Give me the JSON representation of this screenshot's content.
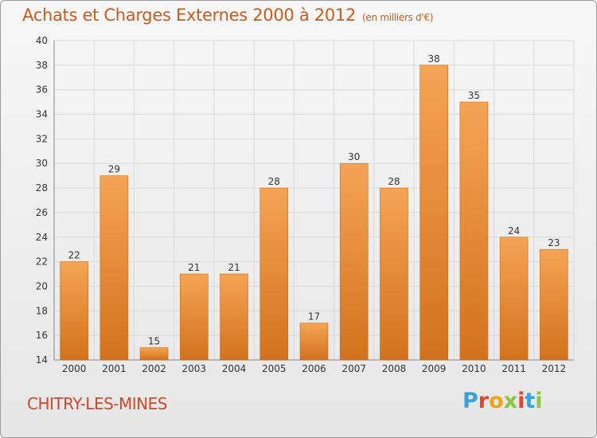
{
  "title": "Achats et Charges Externes 2000 à 2012",
  "subtitle": "(en milliers d'€)",
  "place": "CHITRY-LES-MINES",
  "logo": {
    "letters": [
      "P",
      "r",
      "o",
      "x",
      "i",
      "t",
      "i"
    ],
    "colors": [
      "#3aa0d8",
      "#e2462e",
      "#f0a21b",
      "#8cc63f",
      "#e2462e",
      "#3aa0d8",
      "#8cc63f"
    ]
  },
  "colors": {
    "bar_light": "#f4a455",
    "bar_dark": "#d3721c",
    "title": "#cc5a1a"
  },
  "chart_data": {
    "type": "bar",
    "title": "Achats et Charges Externes 2000 à 2012",
    "subtitle": "(en milliers d'€)",
    "categories": [
      "2000",
      "2001",
      "2002",
      "2003",
      "2004",
      "2005",
      "2006",
      "2007",
      "2008",
      "2009",
      "2010",
      "2011",
      "2012"
    ],
    "values": [
      22,
      29,
      15,
      21,
      21,
      28,
      17,
      30,
      28,
      38,
      35,
      24,
      23
    ],
    "ylim": [
      14,
      40
    ],
    "yticks": [
      14,
      16,
      18,
      20,
      22,
      24,
      26,
      28,
      30,
      32,
      34,
      36,
      38,
      40
    ],
    "grid": true,
    "data_labels": true
  }
}
